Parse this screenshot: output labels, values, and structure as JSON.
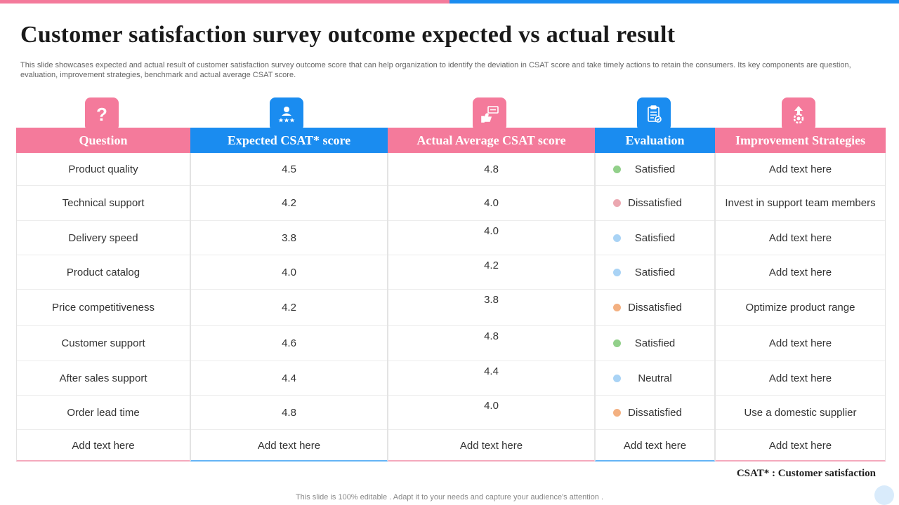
{
  "title": "Customer satisfaction survey outcome expected vs actual result",
  "description": "This slide showcases expected and actual result of customer satisfaction survey outcome score that can help organization to identify the deviation in CSAT  score and take timely actions to retain the consumers. Its key components are question, evaluation, improvement strategies, benchmark and actual average CSAT score.",
  "icons": [
    "question-icon",
    "rating-person-icon",
    "thumbs-up-feedback-icon",
    "clipboard-check-icon",
    "growth-gear-icon"
  ],
  "colors": {
    "pink": "#f47a9b",
    "blue": "#1a8cf0"
  },
  "headers": {
    "question": "Question",
    "expected": "Expected CSAT* score",
    "actual": "Actual Average CSAT score",
    "evaluation": "Evaluation",
    "strategies": "Improvement Strategies"
  },
  "rows": [
    {
      "question": "Product quality",
      "expected": "4.5",
      "actual": "4.8",
      "evaluation": "Satisfied",
      "dot_color": "#92d08a",
      "strategy": "Add text here"
    },
    {
      "question": "Technical support",
      "expected": "4.2",
      "actual": "4.0",
      "evaluation": "Dissatisfied",
      "dot_color": "#eba7b0",
      "strategy": "Invest in support team members"
    },
    {
      "question": "Delivery speed",
      "expected": "3.8",
      "actual": "4.0",
      "evaluation": "Satisfied",
      "dot_color": "#a9d3f5",
      "strategy": "Add text here"
    },
    {
      "question": "Product catalog",
      "expected": "4.0",
      "actual": "4.2",
      "evaluation": "Satisfied",
      "dot_color": "#a9d3f5",
      "strategy": "Add text here"
    },
    {
      "question": "Price competitiveness",
      "expected": "4.2",
      "actual": "3.8",
      "evaluation": "Dissatisfied",
      "dot_color": "#f3b081",
      "strategy": "Optimize product range"
    },
    {
      "question": "Customer support",
      "expected": "4.6",
      "actual": "4.8",
      "evaluation": "Satisfied",
      "dot_color": "#92d08a",
      "strategy": "Add text here"
    },
    {
      "question": "After sales support",
      "expected": "4.4",
      "actual": "4.4",
      "evaluation": "Neutral",
      "dot_color": "#a9d3f5",
      "strategy": "Add text here"
    },
    {
      "question": "Order lead time",
      "expected": "4.8",
      "actual": "4.0",
      "evaluation": "Dissatisfied",
      "dot_color": "#f3b081",
      "strategy": "Use a domestic supplier"
    },
    {
      "question": "Add text here",
      "expected": "Add text here",
      "actual": "Add text here",
      "evaluation": "Add text here",
      "dot_color": "",
      "strategy": "Add text here"
    }
  ],
  "footnote": "CSAT* : Customer satisfaction",
  "footer": "This slide is 100% editable . Adapt it to your needs and capture your audience's attention ."
}
